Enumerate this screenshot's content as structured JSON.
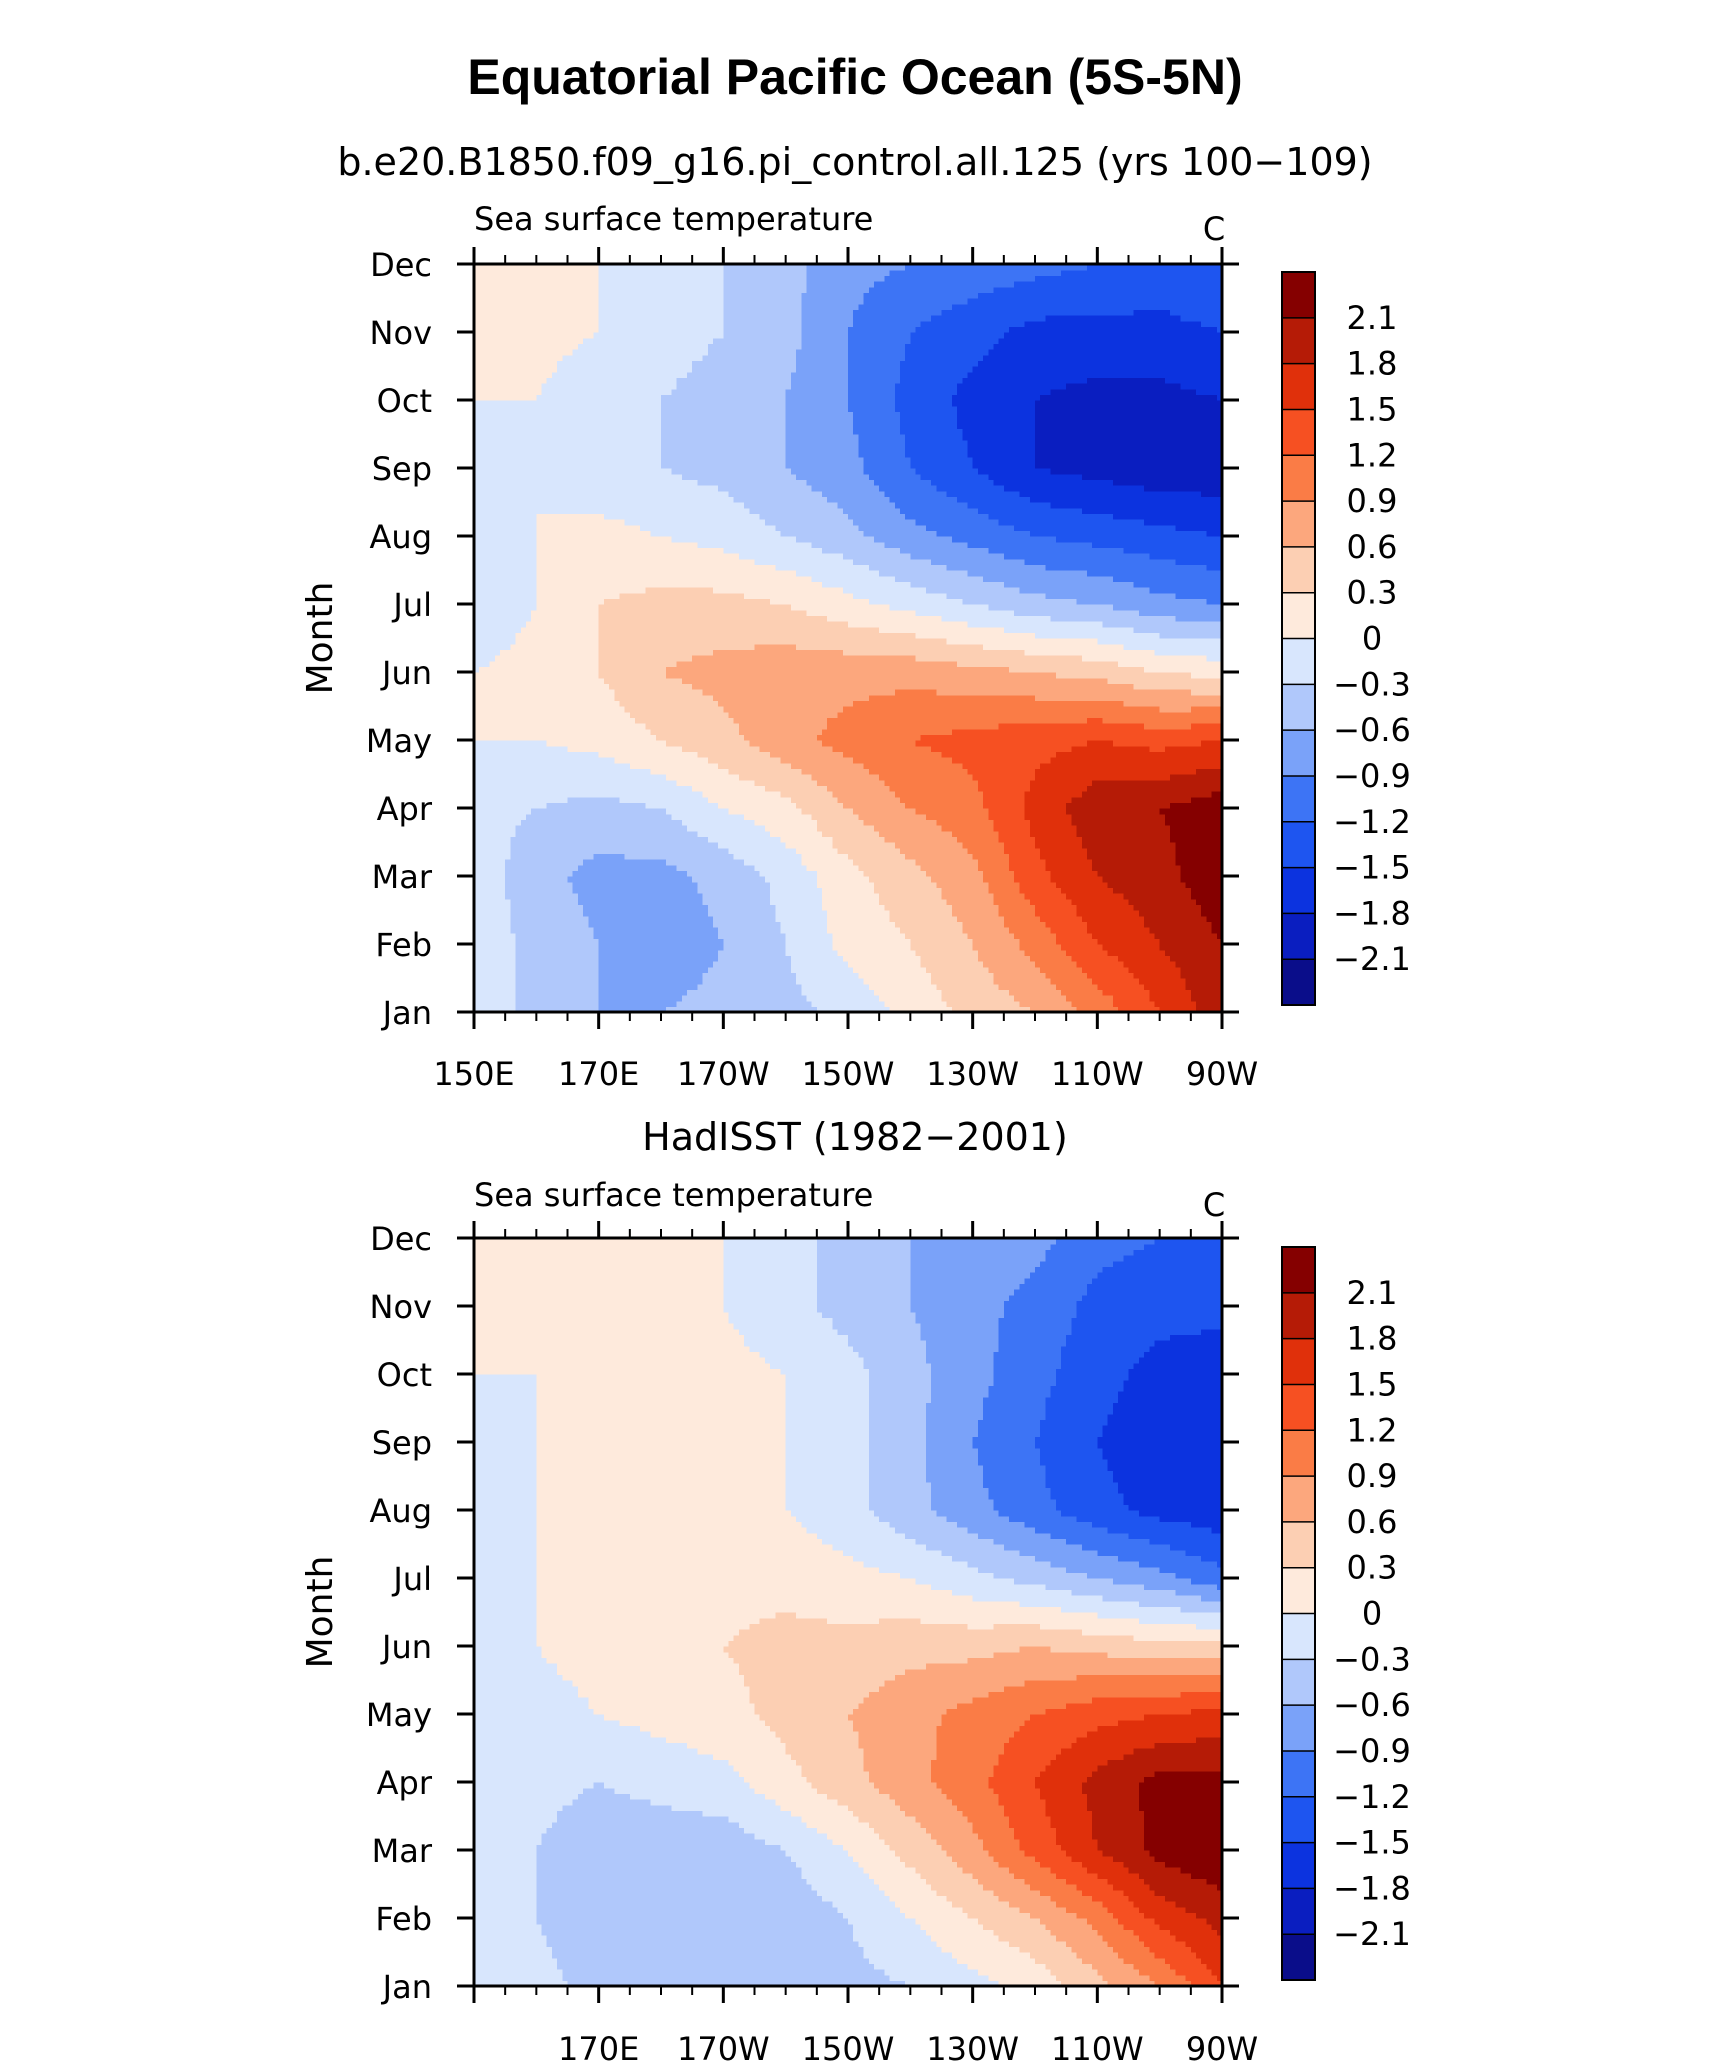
{
  "title": "Equatorial Pacific Ocean (5S-5N)",
  "chart_data": [
    {
      "type": "heatmap",
      "subtitle": "b.e20.B1850.f09_g16.pi_control.all.125 (yrs 100−109)",
      "left_label": "Sea surface temperature",
      "units": "C",
      "ylabel": "Month",
      "x_ticks": [
        "150E",
        "170E",
        "170W",
        "150W",
        "130W",
        "110W",
        "90W"
      ],
      "y_ticks": [
        "Jan",
        "Feb",
        "Mar",
        "Apr",
        "May",
        "Jun",
        "Jul",
        "Aug",
        "Sep",
        "Oct",
        "Nov",
        "Dec"
      ],
      "xlim": [
        150,
        270
      ],
      "x_columns": [
        150,
        160,
        170,
        180,
        190,
        200,
        210,
        220,
        230,
        240,
        250,
        260,
        270
      ],
      "grid": [
        [
          -0.1,
          -0.4,
          -0.6,
          -0.6,
          -0.5,
          -0.4,
          -0.2,
          0.1,
          0.4,
          0.6,
          1.0,
          1.5,
          2.0
        ],
        [
          -0.1,
          -0.4,
          -0.6,
          -0.8,
          -0.6,
          -0.3,
          0.1,
          0.3,
          0.6,
          1.0,
          1.5,
          1.8,
          2.1
        ],
        [
          -0.1,
          -0.5,
          -0.7,
          -0.7,
          -0.5,
          -0.2,
          0.2,
          0.5,
          0.8,
          1.4,
          1.8,
          2.0,
          2.3
        ],
        [
          -0.2,
          -0.3,
          -0.4,
          -0.3,
          0.0,
          0.2,
          0.6,
          0.9,
          1.1,
          1.6,
          2.0,
          2.1,
          2.3
        ],
        [
          0.0,
          0.0,
          0.1,
          0.3,
          0.5,
          0.8,
          1.0,
          1.2,
          1.3,
          1.4,
          1.5,
          1.4,
          1.5
        ],
        [
          0.0,
          0.1,
          0.3,
          0.6,
          0.7,
          0.8,
          0.8,
          0.8,
          0.7,
          0.6,
          0.5,
          0.3,
          0.2
        ],
        [
          -0.2,
          0.0,
          0.3,
          0.4,
          0.4,
          0.3,
          0.1,
          -0.1,
          -0.3,
          -0.5,
          -0.6,
          -0.8,
          -0.9
        ],
        [
          -0.2,
          0.0,
          0.1,
          0.0,
          -0.1,
          -0.3,
          -0.5,
          -0.8,
          -1.0,
          -1.2,
          -1.3,
          -1.4,
          -1.5
        ],
        [
          -0.2,
          0.0,
          -0.2,
          -0.3,
          -0.4,
          -0.6,
          -0.8,
          -1.2,
          -1.5,
          -1.8,
          -1.9,
          -2.0,
          -2.0
        ],
        [
          0.0,
          0.0,
          -0.2,
          -0.3,
          -0.4,
          -0.6,
          -0.9,
          -1.3,
          -1.6,
          -1.8,
          -1.9,
          -1.9,
          -1.8
        ],
        [
          0.0,
          0.1,
          0.0,
          -0.2,
          -0.3,
          -0.5,
          -0.9,
          -1.2,
          -1.4,
          -1.6,
          -1.6,
          -1.6,
          -1.5
        ],
        [
          0.1,
          0.1,
          0.0,
          -0.1,
          -0.3,
          -0.5,
          -0.8,
          -0.9,
          -1.0,
          -1.1,
          -1.2,
          -1.3,
          -1.2
        ]
      ],
      "levels": [
        -2.1,
        -1.8,
        -1.5,
        -1.2,
        -0.9,
        -0.6,
        -0.3,
        0,
        0.3,
        0.6,
        0.9,
        1.2,
        1.5,
        1.8,
        2.1
      ],
      "colorbar_labels": [
        "2.1",
        "1.8",
        "1.5",
        "1.2",
        "0.9",
        "0.6",
        "0.3",
        "0",
        "−0.3",
        "−0.6",
        "−0.9",
        "−1.2",
        "−1.5",
        "−1.8",
        "−2.1"
      ],
      "colors": [
        "#0a0d8a",
        "#0a1ec0",
        "#0c33df",
        "#1e55f0",
        "#3d74f5",
        "#7aa2f9",
        "#b0c8fb",
        "#d8e6fd",
        "#feeadc",
        "#fccfb3",
        "#fca77d",
        "#fa7c46",
        "#f65022",
        "#e0300b",
        "#b51b06",
        "#850000"
      ]
    },
    {
      "type": "heatmap",
      "subtitle": "HadISST (1982−2001)",
      "left_label": "Sea surface temperature",
      "units": "C",
      "ylabel": "Month",
      "x_ticks": [
        "170E",
        "170W",
        "150W",
        "130W",
        "110W",
        "90W"
      ],
      "y_ticks": [
        "Jan",
        "Feb",
        "Mar",
        "Apr",
        "May",
        "Jun",
        "Jul",
        "Aug",
        "Sep",
        "Oct",
        "Nov",
        "Dec"
      ],
      "xlim": [
        150,
        270
      ],
      "x_columns": [
        150,
        160,
        170,
        180,
        190,
        200,
        210,
        220,
        230,
        240,
        250,
        260,
        270
      ],
      "grid": [
        [
          0.0,
          -0.2,
          -0.4,
          -0.5,
          -0.5,
          -0.5,
          -0.4,
          -0.3,
          -0.1,
          0.1,
          0.5,
          0.9,
          1.5
        ],
        [
          -0.1,
          -0.3,
          -0.5,
          -0.6,
          -0.6,
          -0.5,
          -0.3,
          0.0,
          0.3,
          0.6,
          1.0,
          1.6,
          1.9
        ],
        [
          -0.1,
          -0.3,
          -0.5,
          -0.5,
          -0.5,
          -0.3,
          0.0,
          0.4,
          0.8,
          1.3,
          1.8,
          2.2,
          2.4
        ],
        [
          -0.1,
          -0.2,
          -0.3,
          -0.2,
          -0.1,
          0.2,
          0.5,
          0.8,
          1.1,
          1.5,
          1.9,
          2.2,
          2.2
        ],
        [
          -0.1,
          -0.1,
          0.0,
          0.1,
          0.2,
          0.4,
          0.6,
          0.8,
          1.0,
          1.2,
          1.4,
          1.5,
          1.6
        ],
        [
          -0.2,
          0.0,
          0.1,
          0.2,
          0.3,
          0.4,
          0.4,
          0.5,
          0.5,
          0.6,
          0.5,
          0.4,
          0.4
        ],
        [
          -0.2,
          0.0,
          0.1,
          0.1,
          0.2,
          0.2,
          0.1,
          0.0,
          -0.2,
          -0.4,
          -0.6,
          -0.8,
          -1.1
        ],
        [
          -0.2,
          0.0,
          0.0,
          0.1,
          0.1,
          0.0,
          -0.2,
          -0.5,
          -0.8,
          -1.1,
          -1.4,
          -1.6,
          -1.7
        ],
        [
          -0.2,
          0.0,
          0.1,
          0.3,
          0.1,
          0.0,
          -0.2,
          -0.5,
          -0.9,
          -1.2,
          -1.5,
          -1.7,
          -1.8
        ],
        [
          0.0,
          0.0,
          0.1,
          0.1,
          0.1,
          0.0,
          -0.2,
          -0.5,
          -0.8,
          -1.1,
          -1.4,
          -1.6,
          -1.7
        ],
        [
          0.0,
          0.0,
          0.1,
          0.1,
          0.0,
          -0.2,
          -0.4,
          -0.6,
          -0.8,
          -1.0,
          -1.3,
          -1.4,
          -1.4
        ],
        [
          0.0,
          0.1,
          0.1,
          0.1,
          0.0,
          -0.2,
          -0.4,
          -0.6,
          -0.7,
          -0.8,
          -1.1,
          -1.2,
          -1.2
        ]
      ],
      "levels": [
        -2.1,
        -1.8,
        -1.5,
        -1.2,
        -0.9,
        -0.6,
        -0.3,
        0,
        0.3,
        0.6,
        0.9,
        1.2,
        1.5,
        1.8,
        2.1
      ],
      "colorbar_labels": [
        "2.1",
        "1.8",
        "1.5",
        "1.2",
        "0.9",
        "0.6",
        "0.3",
        "0",
        "−0.3",
        "−0.6",
        "−0.9",
        "−1.2",
        "−1.5",
        "−1.8",
        "−2.1"
      ],
      "colors": [
        "#0a0d8a",
        "#0a1ec0",
        "#0c33df",
        "#1e55f0",
        "#3d74f5",
        "#7aa2f9",
        "#b0c8fb",
        "#d8e6fd",
        "#feeadc",
        "#fccfb3",
        "#fca77d",
        "#fa7c46",
        "#f65022",
        "#e0300b",
        "#b51b06",
        "#850000"
      ]
    }
  ]
}
